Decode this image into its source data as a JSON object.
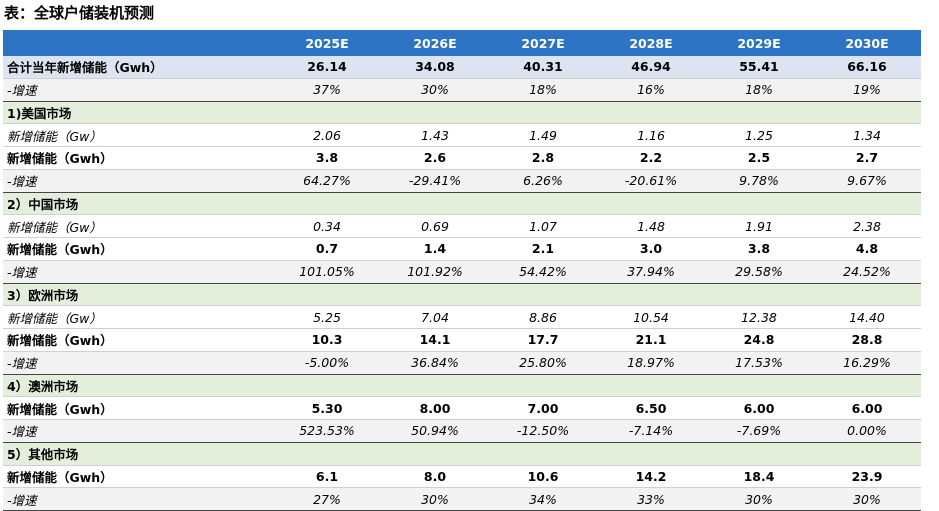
{
  "title": "表：全球户储装机预测",
  "table": {
    "columns": [
      "2025E",
      "2026E",
      "2027E",
      "2028E",
      "2029E",
      "2030E"
    ],
    "rows": [
      {
        "label": "合计当年新增储能（Gwh）",
        "cells": [
          "26.14",
          "34.08",
          "40.31",
          "46.94",
          "55.41",
          "66.16"
        ]
      },
      {
        "label": "-增速",
        "cells": [
          "37%",
          "30%",
          "18%",
          "16%",
          "18%",
          "19%"
        ]
      },
      {
        "label": "1)美国市场"
      },
      {
        "label": "新增储能（Gw）",
        "cells": [
          "2.06",
          "1.43",
          "1.49",
          "1.16",
          "1.25",
          "1.34"
        ]
      },
      {
        "label": "新增储能（Gwh）",
        "cells": [
          "3.8",
          "2.6",
          "2.8",
          "2.2",
          "2.5",
          "2.7"
        ]
      },
      {
        "label": "-增速",
        "cells": [
          "64.27%",
          "-29.41%",
          "6.26%",
          "-20.61%",
          "9.78%",
          "9.67%"
        ]
      },
      {
        "label": "2）中国市场"
      },
      {
        "label": "新增储能（Gw）",
        "cells": [
          "0.34",
          "0.69",
          "1.07",
          "1.48",
          "1.91",
          "2.38"
        ]
      },
      {
        "label": "新增储能（Gwh）",
        "cells": [
          "0.7",
          "1.4",
          "2.1",
          "3.0",
          "3.8",
          "4.8"
        ]
      },
      {
        "label": "-增速",
        "cells": [
          "101.05%",
          "101.92%",
          "54.42%",
          "37.94%",
          "29.58%",
          "24.52%"
        ]
      },
      {
        "label": "3）欧洲市场"
      },
      {
        "label": "新增储能（Gw）",
        "cells": [
          "5.25",
          "7.04",
          "8.86",
          "10.54",
          "12.38",
          "14.40"
        ]
      },
      {
        "label": "新增储能（Gwh）",
        "cells": [
          "10.3",
          "14.1",
          "17.7",
          "21.1",
          "24.8",
          "28.8"
        ]
      },
      {
        "label": "-增速",
        "cells": [
          "-5.00%",
          "36.84%",
          "25.80%",
          "18.97%",
          "17.53%",
          "16.29%"
        ]
      },
      {
        "label": "4）澳洲市场"
      },
      {
        "label": "新增储能（Gwh）",
        "cells": [
          "5.30",
          "8.00",
          "7.00",
          "6.50",
          "6.00",
          "6.00"
        ]
      },
      {
        "label": "-增速",
        "cells": [
          "523.53%",
          "50.94%",
          "-12.50%",
          "-7.14%",
          "-7.69%",
          "0.00%"
        ]
      },
      {
        "label": "5）其他市场"
      },
      {
        "label": "新增储能（Gwh）",
        "cells": [
          "6.1",
          "8.0",
          "10.6",
          "14.2",
          "18.4",
          "23.9"
        ]
      },
      {
        "label": "-增速",
        "cells": [
          "27%",
          "30%",
          "34%",
          "33%",
          "30%",
          "30%"
        ]
      }
    ]
  }
}
